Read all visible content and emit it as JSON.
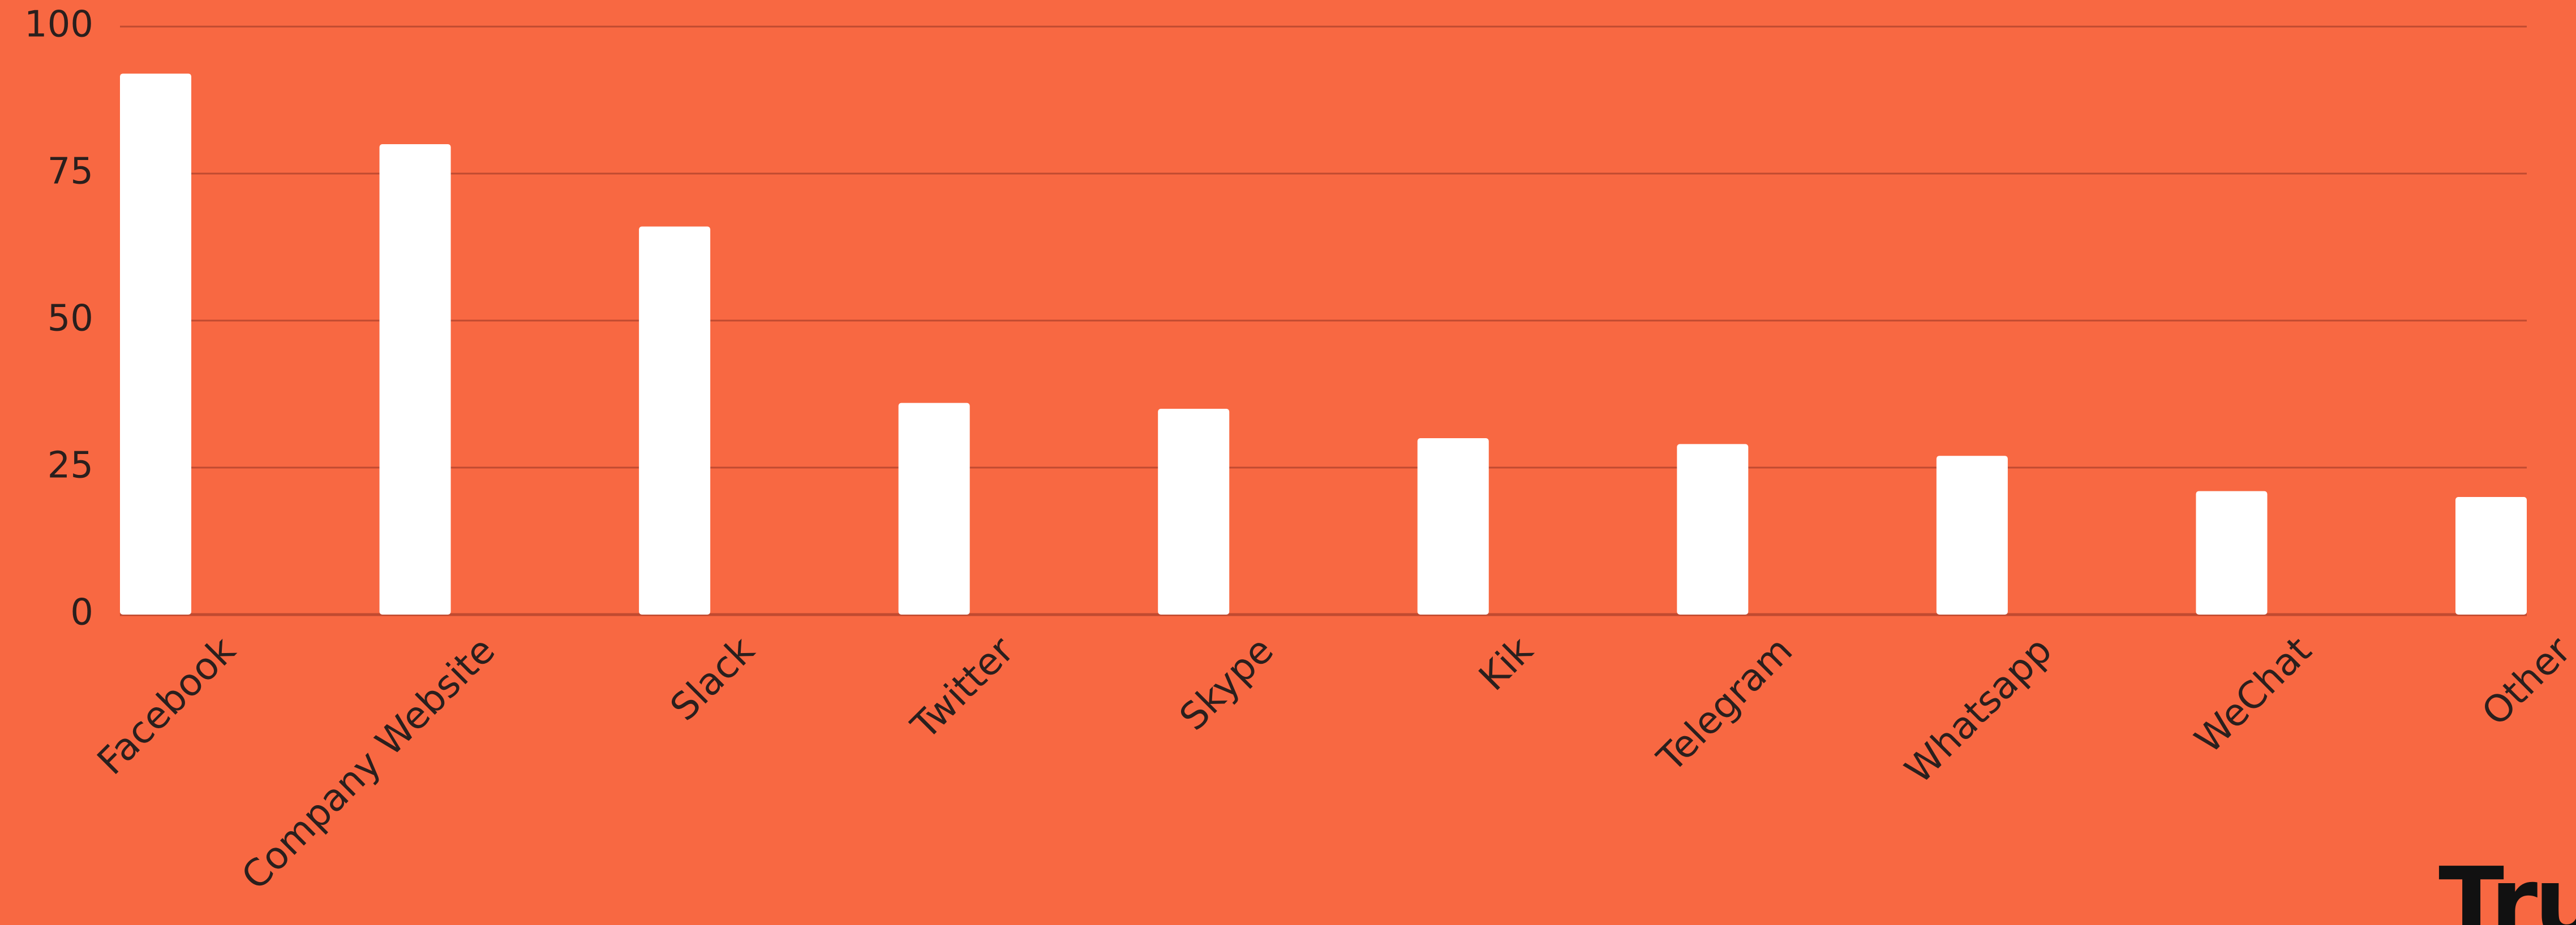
{
  "colors": {
    "background": "#F86842",
    "bar": "#FFFFFF",
    "grid": "#C04A30",
    "text": "#2A1F1D"
  },
  "brand": {
    "text": "TruC"
  },
  "chart_data": {
    "type": "bar",
    "categories": [
      "Facebook",
      "Company Website",
      "Slack",
      "Twitter",
      "Skype",
      "Kik",
      "Telegram",
      "Whatsapp",
      "WeChat",
      "Other"
    ],
    "values": [
      92,
      80,
      66,
      36,
      35,
      30,
      29,
      27,
      21,
      20
    ],
    "yticks": [
      "0",
      "25",
      "50",
      "75",
      "100"
    ],
    "ylim": [
      0,
      100
    ],
    "title": "",
    "xlabel": "",
    "ylabel": "",
    "grid": true,
    "legend": "none"
  }
}
